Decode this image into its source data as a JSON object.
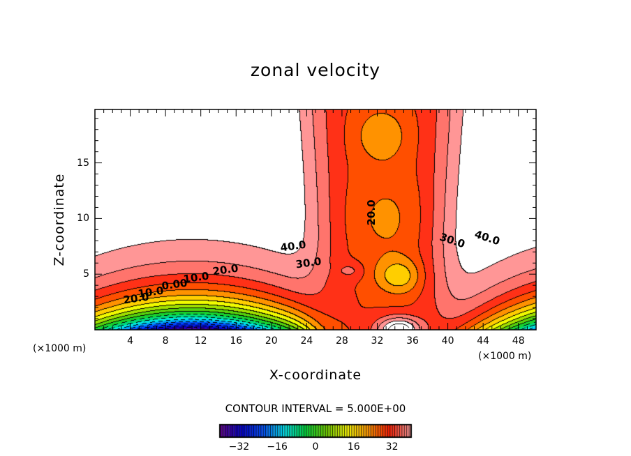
{
  "chart_data": {
    "type": "heatmap",
    "subtype": "filled-contour",
    "title": "zonal velocity",
    "xlabel": "X-coordinate",
    "ylabel": "Z-coordinate",
    "x_unit": "(×1000 m)",
    "z_unit": "(×1000 m)",
    "xlim": [
      0,
      50
    ],
    "ylim": [
      0,
      19.8
    ],
    "x_ticks": [
      "4",
      "8",
      "12",
      "16",
      "20",
      "24",
      "28",
      "32",
      "36",
      "40",
      "44",
      "48"
    ],
    "x_tick_values": [
      4,
      8,
      12,
      16,
      20,
      24,
      28,
      32,
      36,
      40,
      44,
      48
    ],
    "y_ticks": [
      "5",
      "10",
      "15"
    ],
    "y_tick_values": [
      5,
      10,
      15
    ],
    "contour_interval_text": "CONTOUR INTERVAL = 5.000E+00",
    "contour_interval": 5,
    "contour_labels": [
      {
        "text": "40.0",
        "x": 22.5,
        "z": 7.5
      },
      {
        "text": "30.0",
        "x": 24.2,
        "z": 6.0
      },
      {
        "text": "20.0",
        "x": 14.8,
        "z": 5.4
      },
      {
        "text": "10.0",
        "x": 11.5,
        "z": 4.7
      },
      {
        "text": "0.00",
        "x": 9.0,
        "z": 4.1
      },
      {
        "text": "10.0",
        "x": 6.3,
        "z": 3.4
      },
      {
        "text": "20.0",
        "x": 4.7,
        "z": 2.8
      },
      {
        "text": "20.0",
        "x": 31.3,
        "z": 10.5
      },
      {
        "text": "30.0",
        "x": 40.5,
        "z": 8.0
      },
      {
        "text": "40.0",
        "x": 44.5,
        "z": 8.3
      }
    ],
    "colorbar": {
      "range": [
        -40,
        40
      ],
      "ticks": [
        "−32",
        "−16",
        "0",
        "16",
        "32"
      ],
      "tick_values": [
        -32,
        -16,
        0,
        16,
        32
      ]
    },
    "colors": [
      "#5a008c",
      "#0000c8",
      "#0050ff",
      "#00e6f0",
      "#00d23c",
      "#6ed200",
      "#ffff00",
      "#ff9600",
      "#ff1e00",
      "#ff9696"
    ]
  }
}
